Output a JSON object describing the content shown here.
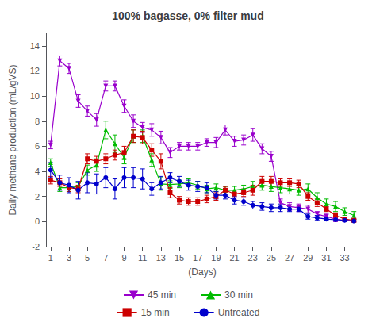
{
  "chart_data": {
    "type": "line",
    "title": "100% bagasse, 0% filter mud",
    "xlabel": "(Days)",
    "ylabel": "Daily methane production (mL/gVS)",
    "x": [
      1,
      2,
      3,
      4,
      5,
      6,
      7,
      8,
      9,
      10,
      11,
      12,
      13,
      14,
      15,
      16,
      17,
      18,
      19,
      20,
      21,
      22,
      23,
      24,
      25,
      26,
      27,
      28,
      29,
      30,
      31,
      32,
      33,
      34
    ],
    "series": [
      {
        "name": "45 min",
        "color": "#9900cc",
        "marker": "triangle_down",
        "values": [
          6.1,
          12.8,
          12.2,
          9.6,
          8.8,
          8.1,
          10.8,
          10.8,
          9.2,
          8.0,
          7.5,
          7.3,
          6.7,
          5.5,
          6.0,
          6.0,
          6.0,
          6.3,
          6.3,
          7.3,
          6.4,
          6.5,
          6.9,
          5.8,
          5.2,
          1.5,
          1.2,
          1.1,
          1.0,
          0.6,
          0.4,
          0.2,
          0.1,
          0.1
        ],
        "errors": [
          0.3,
          0.4,
          0.4,
          0.5,
          0.4,
          0.5,
          0.4,
          0.4,
          0.5,
          0.5,
          0.4,
          0.5,
          0.5,
          0.4,
          0.3,
          0.3,
          0.3,
          0.3,
          0.4,
          0.4,
          0.4,
          0.4,
          0.5,
          0.4,
          0.4,
          0.3,
          0.3,
          0.3,
          0.3,
          0.2,
          0.2,
          0.2,
          0.1,
          0.1
        ]
      },
      {
        "name": "30 min",
        "color": "#00bb00",
        "marker": "triangle_up",
        "values": [
          4.7,
          2.7,
          2.7,
          2.8,
          4.1,
          4.5,
          7.3,
          6.2,
          5.1,
          6.8,
          6.8,
          4.9,
          3.0,
          2.95,
          3.0,
          3.1,
          2.9,
          2.6,
          2.7,
          2.5,
          2.5,
          2.6,
          2.8,
          2.9,
          2.8,
          2.7,
          2.6,
          2.5,
          2.6,
          1.9,
          1.4,
          1.2,
          0.8,
          0.5
        ],
        "errors": [
          0.3,
          0.3,
          0.3,
          0.3,
          0.4,
          0.5,
          0.7,
          0.7,
          0.5,
          0.5,
          0.5,
          0.5,
          0.5,
          0.3,
          0.3,
          0.3,
          0.3,
          0.3,
          0.3,
          0.3,
          0.3,
          0.3,
          0.4,
          0.4,
          0.4,
          0.4,
          0.4,
          0.4,
          0.4,
          0.4,
          0.4,
          0.4,
          0.3,
          0.3
        ]
      },
      {
        "name": "15 min",
        "color": "#cc0000",
        "marker": "square",
        "values": [
          3.3,
          3.1,
          2.7,
          2.6,
          5.0,
          4.8,
          5.0,
          5.3,
          5.5,
          6.8,
          6.7,
          5.7,
          4.8,
          2.3,
          1.7,
          1.6,
          1.6,
          1.8,
          2.0,
          2.5,
          2.2,
          2.3,
          2.5,
          3.2,
          3.2,
          3.1,
          3.1,
          3.0,
          2.0,
          1.5,
          1.0,
          0.5,
          0.2,
          0.1
        ],
        "errors": [
          0.3,
          0.3,
          0.3,
          0.3,
          0.4,
          0.4,
          0.4,
          0.4,
          0.5,
          0.5,
          0.5,
          0.5,
          0.6,
          0.4,
          0.3,
          0.3,
          0.3,
          0.3,
          0.3,
          0.3,
          0.3,
          0.3,
          0.4,
          0.4,
          0.4,
          0.3,
          0.3,
          0.3,
          0.3,
          0.3,
          0.2,
          0.2,
          0.1,
          0.1
        ]
      },
      {
        "name": "Untreated",
        "color": "#0000cc",
        "marker": "circle",
        "values": [
          4.1,
          3.1,
          2.9,
          2.5,
          3.1,
          3.0,
          3.5,
          2.6,
          3.5,
          3.5,
          3.4,
          2.6,
          3.1,
          3.5,
          3.2,
          2.9,
          2.8,
          2.7,
          2.1,
          2.1,
          1.7,
          1.6,
          1.3,
          1.2,
          1.1,
          1.1,
          1.0,
          1.0,
          0.4,
          0.3,
          0.2,
          0.15,
          0.1,
          0.05
        ],
        "errors": [
          0.6,
          0.6,
          0.6,
          0.7,
          0.8,
          0.8,
          0.8,
          0.8,
          0.8,
          0.8,
          0.8,
          0.5,
          0.5,
          0.4,
          0.4,
          0.4,
          0.4,
          0.4,
          0.3,
          0.3,
          0.3,
          0.3,
          0.3,
          0.3,
          0.3,
          0.3,
          0.2,
          0.2,
          0.2,
          0.2,
          0.1,
          0.1,
          0.1,
          0.1
        ]
      }
    ],
    "xlim": [
      0.5,
      34.5
    ],
    "xticks": [
      1,
      3,
      5,
      7,
      9,
      11,
      13,
      15,
      17,
      19,
      21,
      23,
      25,
      27,
      29,
      31,
      33
    ],
    "ylim": [
      -2,
      15
    ],
    "yticks": [
      -2,
      0,
      2,
      4,
      6,
      8,
      10,
      12,
      14
    ],
    "grid": false,
    "legend": "bottom"
  }
}
